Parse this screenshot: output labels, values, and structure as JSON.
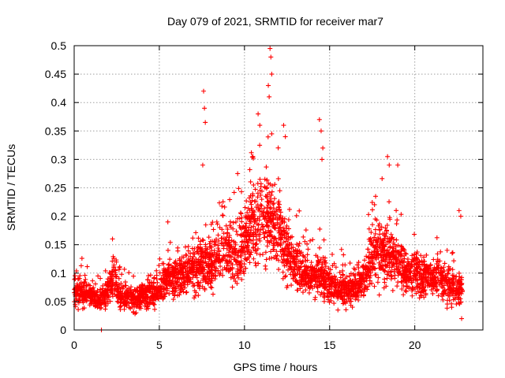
{
  "chart_data": {
    "type": "scatter",
    "title": "Day 079 of 2021, SRMTID for receiver mar7",
    "xlabel": "GPS time / hours",
    "ylabel": "SRMTID / TECUs",
    "xlim": [
      0,
      24
    ],
    "ylim": [
      0,
      0.5
    ],
    "x_ticks": [
      0,
      5,
      10,
      15,
      20
    ],
    "x_tick_labels": [
      "0",
      "5",
      "10",
      "15",
      "20"
    ],
    "y_ticks": [
      0,
      0.05,
      0.1,
      0.15,
      0.2,
      0.25,
      0.3,
      0.35,
      0.4,
      0.45,
      0.5
    ],
    "y_tick_labels": [
      "0",
      "0.05",
      "0.1",
      "0.15",
      "0.2",
      "0.25",
      "0.3",
      "0.35",
      "0.4",
      "0.45",
      "0.5"
    ],
    "grid": true,
    "marker": "+",
    "color": "#ff0000",
    "series": [
      {
        "name": "mar7",
        "baseline": [
          [
            0.0,
            0.07
          ],
          [
            0.5,
            0.065
          ],
          [
            1.0,
            0.06
          ],
          [
            1.5,
            0.05
          ],
          [
            2.0,
            0.07
          ],
          [
            2.3,
            0.095
          ],
          [
            2.7,
            0.06
          ],
          [
            3.0,
            0.055
          ],
          [
            3.5,
            0.055
          ],
          [
            4.0,
            0.06
          ],
          [
            4.5,
            0.065
          ],
          [
            5.0,
            0.07
          ],
          [
            5.5,
            0.095
          ],
          [
            6.0,
            0.09
          ],
          [
            6.5,
            0.1
          ],
          [
            7.0,
            0.11
          ],
          [
            7.5,
            0.12
          ],
          [
            8.0,
            0.11
          ],
          [
            8.5,
            0.13
          ],
          [
            9.0,
            0.14
          ],
          [
            9.5,
            0.13
          ],
          [
            10.0,
            0.15
          ],
          [
            10.5,
            0.19
          ],
          [
            11.0,
            0.2
          ],
          [
            11.5,
            0.2
          ],
          [
            12.0,
            0.18
          ],
          [
            12.5,
            0.14
          ],
          [
            13.0,
            0.11
          ],
          [
            13.5,
            0.1
          ],
          [
            14.0,
            0.09
          ],
          [
            14.5,
            0.1
          ],
          [
            15.0,
            0.08
          ],
          [
            15.5,
            0.07
          ],
          [
            16.0,
            0.07
          ],
          [
            16.5,
            0.075
          ],
          [
            17.0,
            0.09
          ],
          [
            17.5,
            0.13
          ],
          [
            18.0,
            0.14
          ],
          [
            18.5,
            0.13
          ],
          [
            19.0,
            0.12
          ],
          [
            19.5,
            0.1
          ],
          [
            20.0,
            0.1
          ],
          [
            20.5,
            0.095
          ],
          [
            21.0,
            0.09
          ],
          [
            21.5,
            0.09
          ],
          [
            22.0,
            0.085
          ],
          [
            22.5,
            0.07
          ],
          [
            22.8,
            0.07
          ]
        ],
        "bursts": [
          [
            1.6,
            0.0
          ],
          [
            2.25,
            0.16
          ],
          [
            5.5,
            0.19
          ],
          [
            7.6,
            0.42
          ],
          [
            7.65,
            0.39
          ],
          [
            7.7,
            0.365
          ],
          [
            7.55,
            0.29
          ],
          [
            9.6,
            0.275
          ],
          [
            10.8,
            0.38
          ],
          [
            10.9,
            0.36
          ],
          [
            11.5,
            0.495
          ],
          [
            11.55,
            0.48
          ],
          [
            11.6,
            0.45
          ],
          [
            11.4,
            0.43
          ],
          [
            11.45,
            0.41
          ],
          [
            11.6,
            0.345
          ],
          [
            12.3,
            0.36
          ],
          [
            12.4,
            0.34
          ],
          [
            14.4,
            0.37
          ],
          [
            14.5,
            0.35
          ],
          [
            14.6,
            0.32
          ],
          [
            14.55,
            0.3
          ],
          [
            18.4,
            0.305
          ],
          [
            18.5,
            0.29
          ],
          [
            19.0,
            0.29
          ],
          [
            17.7,
            0.235
          ],
          [
            22.6,
            0.21
          ],
          [
            22.7,
            0.2
          ],
          [
            22.75,
            0.02
          ]
        ],
        "num_points": 3400
      }
    ]
  }
}
